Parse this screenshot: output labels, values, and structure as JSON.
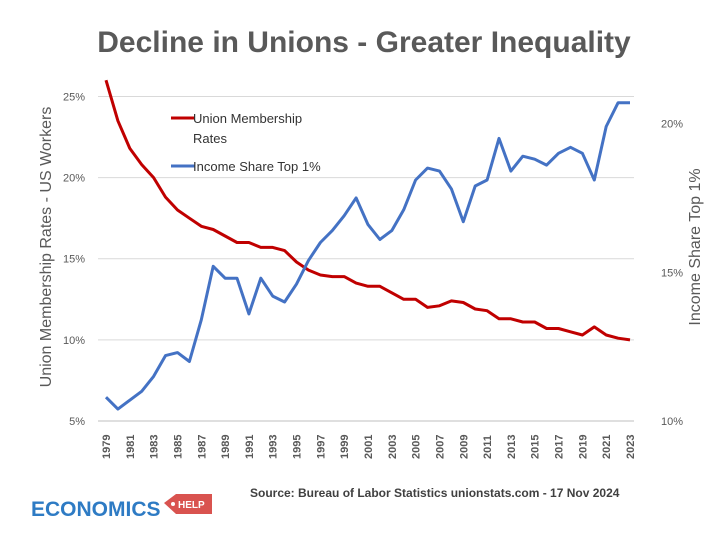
{
  "title": "Decline in Unions - Greater Inequality",
  "source": "Source: Bureau of Labor Statistics unionstats.com - 17 Nov 2024",
  "logo": {
    "main": "ECONOMICS",
    "badge": "HELP"
  },
  "colors": {
    "union": "#c00000",
    "income": "#4472c4",
    "text": "#595959",
    "brand_blue": "#2e7bc4",
    "brand_red": "#d9534f"
  },
  "chart_data": {
    "type": "line",
    "title": "Decline in Unions - Greater Inequality",
    "x": [
      1979,
      1980,
      1981,
      1982,
      1983,
      1984,
      1985,
      1986,
      1987,
      1988,
      1989,
      1990,
      1991,
      1992,
      1993,
      1994,
      1995,
      1996,
      1997,
      1998,
      1999,
      2000,
      2001,
      2002,
      2003,
      2004,
      2005,
      2006,
      2007,
      2008,
      2009,
      2010,
      2011,
      2012,
      2013,
      2014,
      2015,
      2016,
      2017,
      2018,
      2019,
      2020,
      2021,
      2022,
      2023
    ],
    "xticks": [
      "1979",
      "1981",
      "1983",
      "1985",
      "1987",
      "1989",
      "1991",
      "1993",
      "1995",
      "1997",
      "1999",
      "2001",
      "2003",
      "2005",
      "2007",
      "2009",
      "2011",
      "2013",
      "2015",
      "2017",
      "2019",
      "2021",
      "2023"
    ],
    "ylabel": "Union Membership Rates - US Workers",
    "ylim": [
      5,
      27
    ],
    "yticks": [
      "5%",
      "10%",
      "15%",
      "20%",
      "25%"
    ],
    "y2label": "Income Share Top 1%",
    "y2lim": [
      10,
      22
    ],
    "y2ticks": [
      "10%",
      "15%",
      "20%"
    ],
    "grid": true,
    "legend_position": "top-left",
    "series": [
      {
        "name": "Union Membership Rates",
        "axis": "left",
        "values": [
          26.0,
          23.5,
          21.8,
          20.8,
          20.0,
          18.8,
          18.0,
          17.5,
          17.0,
          16.8,
          16.4,
          16.0,
          16.0,
          15.7,
          15.7,
          15.5,
          14.8,
          14.3,
          14.0,
          13.9,
          13.9,
          13.5,
          13.3,
          13.3,
          12.9,
          12.5,
          12.5,
          12.0,
          12.1,
          12.4,
          12.3,
          11.9,
          11.8,
          11.3,
          11.3,
          11.1,
          11.1,
          10.7,
          10.7,
          10.5,
          10.3,
          10.8,
          10.3,
          10.1,
          10.0
        ]
      },
      {
        "name": "Income Share Top 1%",
        "axis": "right",
        "values": [
          10.8,
          10.4,
          10.7,
          11.0,
          11.5,
          12.2,
          12.3,
          12.0,
          13.4,
          15.2,
          14.8,
          14.8,
          13.6,
          14.8,
          14.2,
          14.0,
          14.6,
          15.4,
          16.0,
          16.4,
          16.9,
          17.5,
          16.6,
          16.1,
          16.4,
          17.1,
          18.1,
          18.5,
          18.4,
          17.8,
          16.7,
          17.9,
          18.1,
          19.5,
          18.4,
          18.9,
          18.8,
          18.6,
          19.0,
          19.2,
          19.0,
          18.1,
          19.9,
          20.7,
          20.7
        ]
      }
    ]
  }
}
